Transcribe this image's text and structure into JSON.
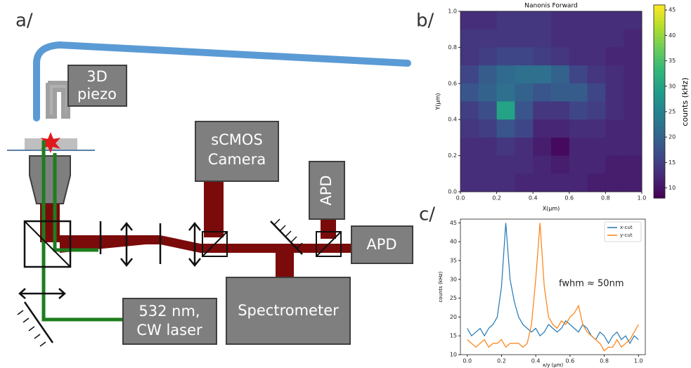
{
  "panel_labels": [
    "a/",
    "b/",
    "c/"
  ],
  "diagram": {
    "nodes": [
      {
        "label": [
          "3D",
          "piezo"
        ]
      },
      {
        "label": [
          "sCMOS",
          "Camera"
        ]
      },
      {
        "label": [
          "APD"
        ]
      },
      {
        "label": [
          "APD"
        ]
      },
      {
        "label": [
          "Spectrometer"
        ]
      },
      {
        "label": [
          "532 nm,",
          "CW laser"
        ]
      }
    ]
  },
  "chart_data": [
    {
      "type": "heatmap",
      "title": "Nanonis Forward",
      "x_label": "X(μm)",
      "y_label": "Y(μm)",
      "xlim": [
        0,
        1
      ],
      "ylim": [
        0,
        1
      ],
      "xticks": [
        {
          "value": 0,
          "label": "0.0"
        },
        0.2,
        0.4,
        0.6,
        0.8,
        {
          "value": 1,
          "label": "1.0"
        }
      ],
      "yticks": [
        {
          "value": 0,
          "label": "0.0"
        },
        0.2,
        0.4,
        0.6,
        0.8,
        {
          "value": 1,
          "label": "1.0"
        }
      ],
      "x": [
        0.05,
        0.15,
        0.25,
        0.35,
        0.45,
        0.55,
        0.65,
        0.75,
        0.85,
        0.95
      ],
      "y": [
        0.95,
        0.85,
        0.75,
        0.65,
        0.55,
        0.45,
        0.35,
        0.25,
        0.15,
        0.05
      ],
      "z": [
        [
          13,
          13,
          14,
          14,
          14,
          13,
          13,
          13,
          13,
          13
        ],
        [
          14,
          14,
          14,
          14,
          14,
          13,
          13,
          13,
          13,
          12
        ],
        [
          14,
          15,
          16,
          16,
          15,
          14,
          13,
          13,
          12,
          12
        ],
        [
          16,
          19,
          21,
          22,
          22,
          20,
          16,
          14,
          13,
          12
        ],
        [
          18,
          20,
          22,
          20,
          18,
          19,
          19,
          16,
          13,
          12
        ],
        [
          15,
          17,
          30,
          18,
          14,
          14,
          16,
          15,
          13,
          12
        ],
        [
          14,
          15,
          18,
          16,
          12,
          12,
          13,
          13,
          12,
          12
        ],
        [
          13,
          13,
          14,
          13,
          11,
          9,
          12,
          12,
          12,
          12
        ],
        [
          13,
          13,
          13,
          13,
          12,
          11,
          12,
          12,
          11,
          11
        ],
        [
          13,
          13,
          13,
          12,
          12,
          12,
          12,
          11,
          11,
          11
        ]
      ],
      "colormap": "viridis",
      "colorbar": {
        "label": "counts (kHz)",
        "lim": [
          8,
          46
        ],
        "ticks": [
          10,
          15,
          20,
          25,
          30,
          35,
          40,
          45
        ]
      }
    },
    {
      "type": "line",
      "x_label": "x/y (μm)",
      "y_label": "counts (kHz)",
      "annotation": "fwhm ≈ 50nm",
      "xlim": [
        -0.04,
        1.04
      ],
      "ylim": [
        10,
        46
      ],
      "xticks": [
        {
          "value": 0,
          "label": "0.0"
        },
        0.2,
        0.4,
        0.6,
        0.8,
        {
          "value": 1,
          "label": "1.0"
        }
      ],
      "yticks": [
        10,
        15,
        20,
        25,
        30,
        35,
        40,
        45
      ],
      "legend": "upper right",
      "x": [
        0,
        0.025,
        0.05,
        0.075,
        0.1,
        0.125,
        0.15,
        0.175,
        0.2,
        0.225,
        0.25,
        0.275,
        0.3,
        0.325,
        0.35,
        0.375,
        0.4,
        0.425,
        0.45,
        0.475,
        0.5,
        0.525,
        0.55,
        0.575,
        0.6,
        0.625,
        0.65,
        0.675,
        0.7,
        0.725,
        0.75,
        0.775,
        0.8,
        0.825,
        0.85,
        0.875,
        0.9,
        0.925,
        0.95,
        0.975,
        1
      ],
      "series": [
        {
          "name": "x-cut",
          "color": "#1f77b4",
          "values": [
            17,
            15,
            16,
            17,
            15,
            17,
            18,
            20,
            28,
            45,
            30,
            24,
            20,
            18,
            17,
            16,
            17,
            15,
            16,
            18,
            17,
            16,
            17,
            19,
            18,
            17,
            16,
            18,
            17,
            15,
            14,
            16,
            15,
            13,
            15,
            16,
            14,
            15,
            13,
            15,
            14
          ]
        },
        {
          "name": "y-cut",
          "color": "#ff7f0e",
          "values": [
            14,
            13,
            12,
            13,
            14,
            12,
            13,
            13,
            14,
            12,
            13,
            13,
            13,
            12,
            13,
            18,
            30,
            45,
            28,
            20,
            18,
            17,
            19,
            18,
            20,
            21,
            23,
            18,
            16,
            15,
            14,
            13,
            11,
            12,
            12,
            14,
            12,
            13,
            14,
            16,
            18
          ]
        }
      ]
    }
  ]
}
